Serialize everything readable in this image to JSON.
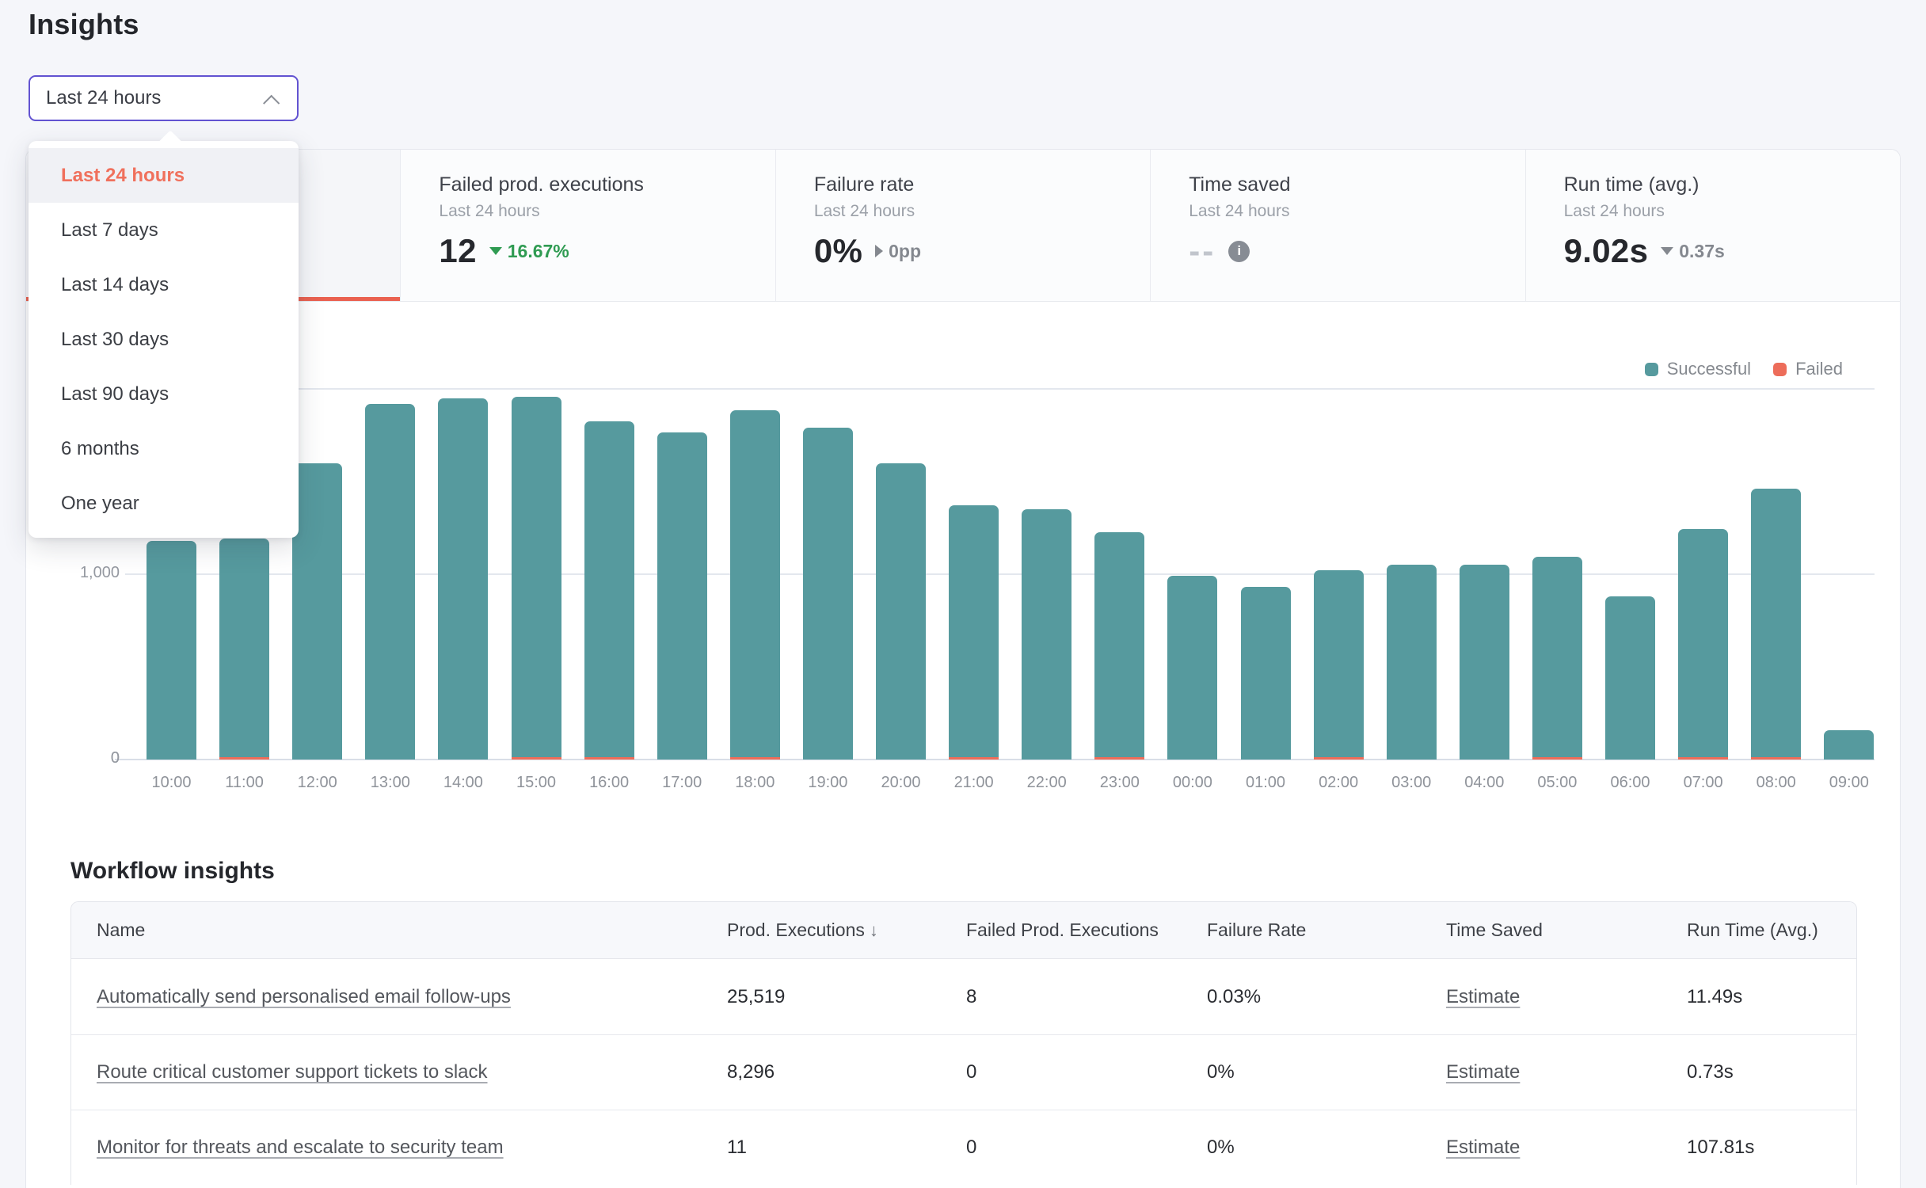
{
  "page": {
    "title": "Insights"
  },
  "period_select": {
    "value": "Last 24 hours",
    "chevron_icon": "chevron-up"
  },
  "period_menu": {
    "items": [
      {
        "label": "Last 24 hours",
        "selected": true
      },
      {
        "label": "Last 7 days",
        "selected": false
      },
      {
        "label": "Last 14 days",
        "selected": false
      },
      {
        "label": "Last 30 days",
        "selected": false
      },
      {
        "label": "Last 90 days",
        "selected": false
      },
      {
        "label": "6 months",
        "selected": false
      },
      {
        "label": "One year",
        "selected": false
      }
    ]
  },
  "summary_cards": [
    {
      "title": "",
      "subtitle": "",
      "value": "",
      "selected": true
    },
    {
      "title": "Failed prod. executions",
      "subtitle": "Last 24 hours",
      "value": "12",
      "delta": {
        "icon": "triangle-down",
        "text": "16.67%",
        "tone": "positive"
      }
    },
    {
      "title": "Failure rate",
      "subtitle": "Last 24 hours",
      "value": "0%",
      "delta": {
        "icon": "triangle-right",
        "text": "0pp",
        "tone": "neutral"
      }
    },
    {
      "title": "Time saved",
      "subtitle": "Last 24 hours",
      "value": "--",
      "muted": true,
      "info_icon": true
    },
    {
      "title": "Run time (avg.)",
      "subtitle": "Last 24 hours",
      "value": "9.02s",
      "delta": {
        "icon": "triangle-down",
        "text": "0.37s",
        "tone": "neutral"
      }
    }
  ],
  "chart_data": {
    "type": "bar",
    "stacked": true,
    "categories": [
      "10:00",
      "11:00",
      "12:00",
      "13:00",
      "14:00",
      "15:00",
      "16:00",
      "17:00",
      "18:00",
      "19:00",
      "20:00",
      "21:00",
      "22:00",
      "23:00",
      "00:00",
      "01:00",
      "02:00",
      "03:00",
      "04:00",
      "05:00",
      "06:00",
      "07:00",
      "08:00",
      "09:00"
    ],
    "series": [
      {
        "name": "Successful",
        "color": "#569a9e",
        "values": [
          1180,
          1180,
          1600,
          1920,
          1950,
          1945,
          1810,
          1765,
          1870,
          1790,
          1600,
          1360,
          1350,
          1215,
          990,
          930,
          1010,
          1050,
          1050,
          1080,
          880,
          1230,
          1450,
          160
        ]
      },
      {
        "name": "Failed",
        "color": "#ed6d5a",
        "values": [
          0,
          2,
          0,
          0,
          0,
          1,
          1,
          0,
          2,
          0,
          0,
          1,
          0,
          1,
          0,
          0,
          1,
          0,
          0,
          1,
          0,
          1,
          1,
          0
        ]
      }
    ],
    "ylim": [
      0,
      2090
    ],
    "yticks": [
      {
        "value": 2000,
        "label": ""
      },
      {
        "value": 1000,
        "label": "1,000"
      },
      {
        "value": 0,
        "label": "0"
      }
    ],
    "legend": [
      {
        "label": "Successful",
        "color": "#569a9e"
      },
      {
        "label": "Failed",
        "color": "#ed6d5a"
      }
    ],
    "legend_position": "top-right",
    "grid": true
  },
  "workflow_insights": {
    "heading": "Workflow insights",
    "columns": [
      {
        "label": "Name"
      },
      {
        "label": "Prod. Executions",
        "sort": "desc",
        "sort_glyph": "↓"
      },
      {
        "label": "Failed Prod. Executions"
      },
      {
        "label": "Failure Rate"
      },
      {
        "label": "Time Saved"
      },
      {
        "label": "Run Time (Avg.)"
      }
    ],
    "rows": [
      {
        "name": "Automatically send personalised email follow-ups",
        "prod_executions": "25,519",
        "failed_prod_executions": "8",
        "failure_rate": "0.03%",
        "time_saved_link": "Estimate",
        "run_time": "11.49s"
      },
      {
        "name": "Route critical customer support tickets to slack",
        "prod_executions": "8,296",
        "failed_prod_executions": "0",
        "failure_rate": "0%",
        "time_saved_link": "Estimate",
        "run_time": "0.73s"
      },
      {
        "name": "Monitor for threats and escalate to security team",
        "prod_executions": "11",
        "failed_prod_executions": "0",
        "failure_rate": "0%",
        "time_saved_link": "Estimate",
        "run_time": "107.81s"
      }
    ]
  },
  "colors": {
    "accent_orange": "#ea6150",
    "menu_selected_text": "#f0705c",
    "select_border_purple": "#6253d1",
    "positive_green": "#2f9b52",
    "bar_teal": "#569a9e",
    "bar_failed": "#ed6d5a",
    "page_bg": "#f5f6fa"
  }
}
